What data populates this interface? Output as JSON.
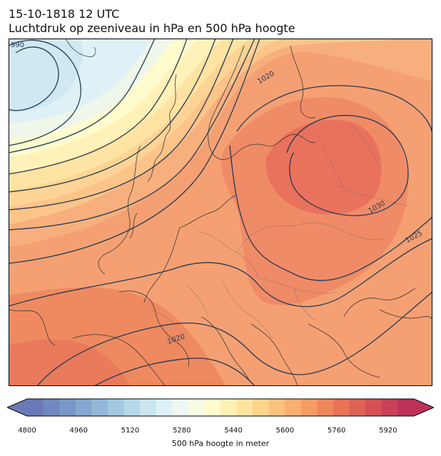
{
  "title": {
    "line1": "15-10-1818 12 UTC",
    "line2": "Luchtdruk op zeeniveau in hPa en 500 hPa hoogte"
  },
  "isobar_labels": [
    "990",
    "1020",
    "1030",
    "1025",
    "1020"
  ],
  "colorbar": {
    "label": "500 hPa hoogte in meter",
    "min": 4800,
    "max": 5960,
    "step": 40,
    "ticks": [
      4800,
      4960,
      5120,
      5280,
      5440,
      5600,
      5760,
      5920
    ],
    "colors": [
      "#6a79b7",
      "#7088bf",
      "#7897c8",
      "#84a8cf",
      "#93b9d7",
      "#a3c9e0",
      "#b6d9e9",
      "#c9e6f0",
      "#ddf1f6",
      "#eef7f3",
      "#f8fbe4",
      "#fefbcd",
      "#fef1b5",
      "#fee49f",
      "#fdd48c",
      "#fcc27c",
      "#f9af6e",
      "#f59b63",
      "#ef875b",
      "#e87357",
      "#de6155",
      "#d45055",
      "#c94156",
      "#bd3258"
    ],
    "extend": "both"
  },
  "field_colors": {
    "low_center": "#cde7f0",
    "ridge_yellow": "#fefbcd",
    "warm": "#f8a272",
    "high_center": "#e9705e",
    "isobar": "#233a55",
    "coast": "#3a3a3a",
    "border": "#8a6d68"
  }
}
